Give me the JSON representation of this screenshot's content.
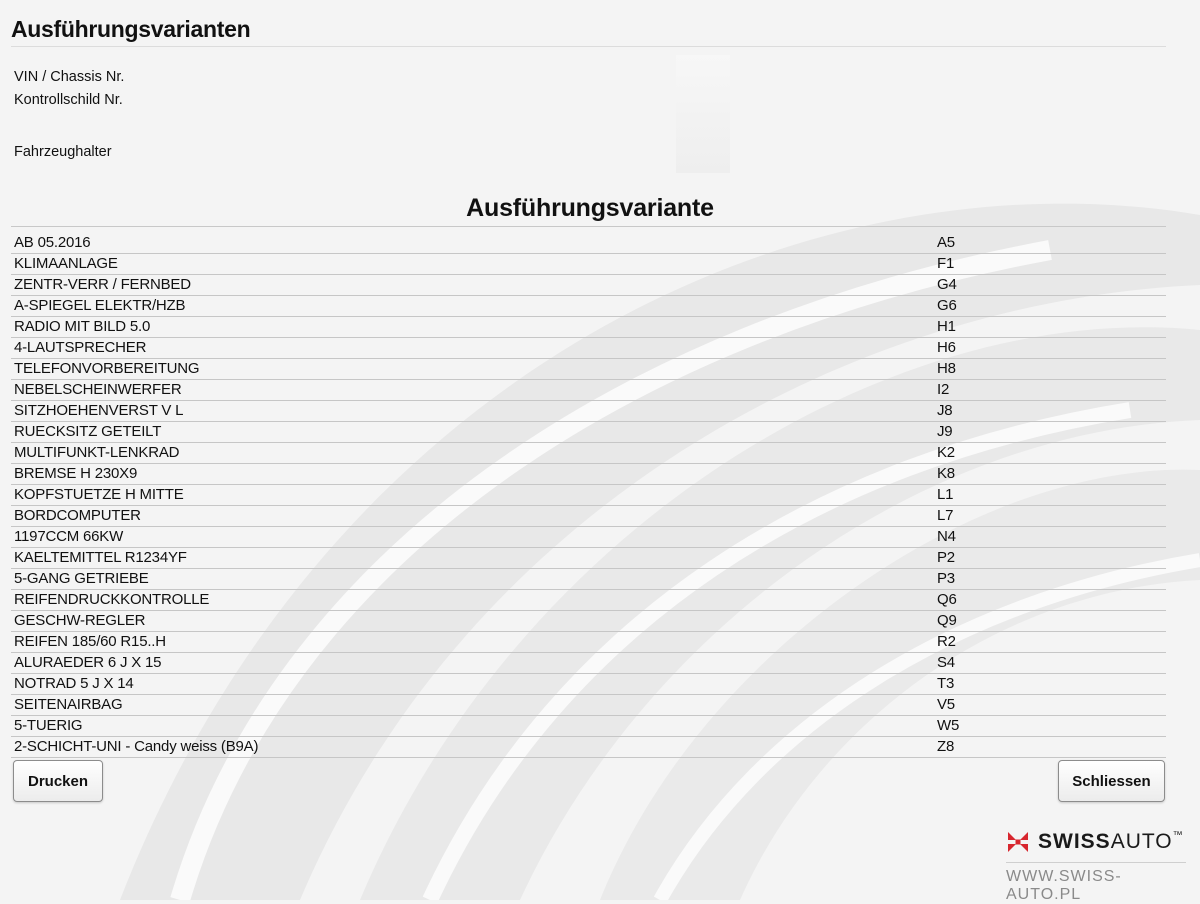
{
  "window": {
    "title": "Ausführungsvarianten"
  },
  "vehicle_info": {
    "vin_label": "VIN / Chassis Nr.",
    "plate_label": "Kontrollschild Nr.",
    "owner_label": "Fahrzeughalter"
  },
  "variants": {
    "section_title": "Ausführungsvariante",
    "rows": [
      {
        "label": "AB 05.2016",
        "code": "A5"
      },
      {
        "label": "KLIMAANLAGE",
        "code": "F1"
      },
      {
        "label": "ZENTR-VERR / FERNBED",
        "code": "G4"
      },
      {
        "label": "A-SPIEGEL ELEKTR/HZB",
        "code": "G6"
      },
      {
        "label": "RADIO MIT BILD 5.0",
        "code": "H1"
      },
      {
        "label": "4-LAUTSPRECHER",
        "code": "H6"
      },
      {
        "label": "TELEFONVORBEREITUNG",
        "code": "H8"
      },
      {
        "label": "NEBELSCHEINWERFER",
        "code": "I2"
      },
      {
        "label": "SITZHOEHENVERST V L",
        "code": "J8"
      },
      {
        "label": "RUECKSITZ GETEILT",
        "code": "J9"
      },
      {
        "label": "MULTIFUNKT-LENKRAD",
        "code": "K2"
      },
      {
        "label": "BREMSE H 230X9",
        "code": "K8"
      },
      {
        "label": "KOPFSTUETZE H MITTE",
        "code": "L1"
      },
      {
        "label": "BORDCOMPUTER",
        "code": "L7"
      },
      {
        "label": "1197CCM 66KW",
        "code": "N4"
      },
      {
        "label": "KAELTEMITTEL R1234YF",
        "code": "P2"
      },
      {
        "label": "5-GANG GETRIEBE",
        "code": "P3"
      },
      {
        "label": "REIFENDRUCKKONTROLLE",
        "code": "Q6"
      },
      {
        "label": "GESCHW-REGLER",
        "code": "Q9"
      },
      {
        "label": "REIFEN 185/60 R15..H",
        "code": "R2"
      },
      {
        "label": "ALURAEDER 6 J X 15",
        "code": "S4"
      },
      {
        "label": "NOTRAD 5 J X 14",
        "code": "T3"
      },
      {
        "label": "SEITENAIRBAG",
        "code": "V5"
      },
      {
        "label": "5-TUERIG",
        "code": "W5"
      },
      {
        "label": "2-SCHICHT-UNI - Candy weiss (B9A)",
        "code": "Z8"
      }
    ]
  },
  "buttons": {
    "print_label": "Drucken",
    "close_label": "Schliessen"
  },
  "branding": {
    "name_bold": "SWISS",
    "name_thin": "AUTO",
    "trademark": "™",
    "url": "WWW.SWISS-AUTO.PL",
    "logo_color": "#d7262e",
    "logo_icon": "swiss-cross-icon"
  }
}
